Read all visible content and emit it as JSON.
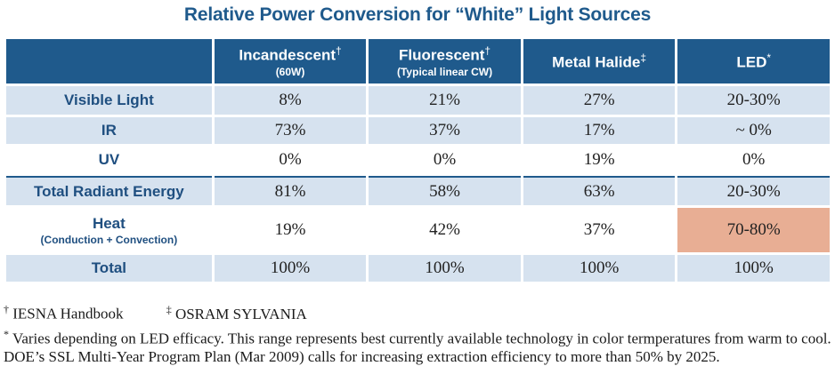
{
  "title": "Relative Power Conversion for “White” Light Sources",
  "columns": [
    {
      "name": "Incandescent",
      "mark": "†",
      "sub": "(60W)"
    },
    {
      "name": "Fluorescent",
      "mark": "†",
      "sub": "(Typical linear CW)"
    },
    {
      "name": "Metal Halide",
      "mark": "‡",
      "sub": ""
    },
    {
      "name": "LED",
      "mark": "*",
      "sub": ""
    }
  ],
  "rows": [
    {
      "label": "Visible Light",
      "sub": "",
      "values": [
        "8%",
        "21%",
        "27%",
        "20-30%"
      ]
    },
    {
      "label": "IR",
      "sub": "",
      "values": [
        "73%",
        "37%",
        "17%",
        "~ 0%"
      ]
    },
    {
      "label": "UV",
      "sub": "",
      "values": [
        "0%",
        "0%",
        "19%",
        "0%"
      ]
    },
    {
      "label": "Total Radiant Energy",
      "sub": "",
      "values": [
        "81%",
        "58%",
        "63%",
        "20-30%"
      ]
    },
    {
      "label": "Heat",
      "sub": "(Conduction + Convection)",
      "values": [
        "19%",
        "42%",
        "37%",
        "70-80%"
      ]
    },
    {
      "label": "Total",
      "sub": "",
      "values": [
        "100%",
        "100%",
        "100%",
        "100%"
      ]
    }
  ],
  "highlight_color": "#e8ae94",
  "accent_color": "#1f5a8c",
  "footnotes": {
    "ref1_mark": "†",
    "ref1": "IESNA Handbook",
    "ref2_mark": "‡",
    "ref2": "OSRAM SYLVANIA",
    "note_mark": "*",
    "note": "Varies depending on LED efficacy. This range represents best currently available technology in color termperatures from warm to cool. DOE’s SSL Multi-Year Program Plan (Mar 2009) calls for increasing extraction efficiency to more than 50% by 2025."
  }
}
